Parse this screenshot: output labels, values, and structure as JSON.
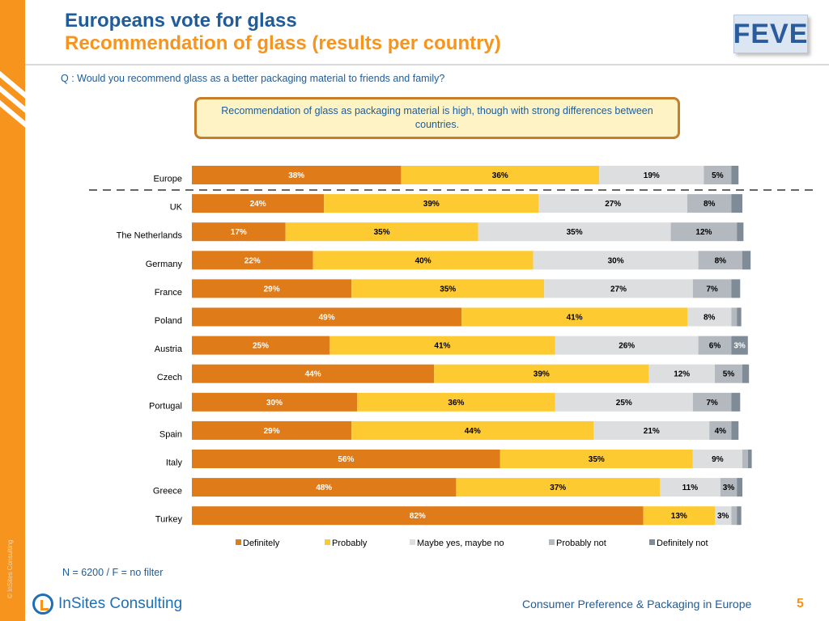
{
  "header": {
    "title": "Europeans vote for glass",
    "subtitle": "Recommendation of glass (results per country)",
    "logo_text": "FEVE"
  },
  "question": "Q : Would you recommend glass as a better packaging material to friends and family?",
  "callout": "Recommendation of glass as packaging material is high, though with strong differences between countries.",
  "note": "N = 6200 / F = no filter",
  "footer": {
    "brand": "InSites Consulting",
    "text": "Consumer Preference & Packaging in Europe",
    "page": "5",
    "watermark": "© InSites Consulting"
  },
  "colors": {
    "accent": "#f7941d",
    "title_blue": "#1f5c99"
  },
  "chart_data": {
    "type": "bar",
    "orientation": "horizontal",
    "stacked": true,
    "categories": [
      "Europe",
      "UK",
      "The Netherlands",
      "Germany",
      "France",
      "Poland",
      "Austria",
      "Czech",
      "Portugal",
      "Spain",
      "Italy",
      "Greece",
      "Turkey"
    ],
    "series": [
      {
        "name": "Definitely",
        "color": "#e07b1a",
        "label_color": "#ffffff",
        "values": [
          38,
          24,
          17,
          22,
          29,
          49,
          25,
          44,
          30,
          29,
          56,
          48,
          82
        ],
        "labels": [
          "38%",
          "24%",
          "17%",
          "22%",
          "29%",
          "49%",
          "25%",
          "44%",
          "30%",
          "29%",
          "56%",
          "48%",
          "82%"
        ]
      },
      {
        "name": "Probably",
        "color": "#fdca32",
        "label_color": "#000000",
        "values": [
          36,
          39,
          35,
          40,
          35,
          41,
          41,
          39,
          36,
          44,
          35,
          37,
          13
        ],
        "labels": [
          "36%",
          "39%",
          "35%",
          "40%",
          "35%",
          "41%",
          "41%",
          "39%",
          "36%",
          "44%",
          "35%",
          "37%",
          "13%"
        ]
      },
      {
        "name": "Maybe yes, maybe no",
        "color": "#dcdee0",
        "label_color": "#000000",
        "values": [
          19,
          27,
          35,
          30,
          27,
          8,
          26,
          12,
          25,
          21,
          9,
          11,
          3
        ],
        "labels": [
          "19%",
          "27%",
          "35%",
          "30%",
          "27%",
          "8%",
          "26%",
          "12%",
          "25%",
          "21%",
          "9%",
          "11%",
          "3%"
        ]
      },
      {
        "name": "Probably not",
        "color": "#b3b9bf",
        "label_color": "#000000",
        "values": [
          5,
          8,
          12,
          8,
          7,
          1,
          6,
          5,
          7,
          4,
          1,
          3,
          1
        ],
        "labels": [
          "5%",
          "8%",
          "12%",
          "8%",
          "7%",
          "",
          "6%",
          "5%",
          "7%",
          "4%",
          "",
          "3%",
          ""
        ]
      },
      {
        "name": "Definitely not",
        "color": "#7f8b96",
        "label_color": "#ffffff",
        "values": [
          1.3,
          2,
          1.2,
          1.5,
          1.6,
          0.8,
          3,
          1.2,
          1.6,
          1.3,
          0.7,
          1,
          0.8
        ],
        "labels": [
          "",
          "",
          "",
          "",
          "",
          "",
          "3%",
          "",
          "",
          "",
          "",
          "",
          ""
        ]
      }
    ],
    "legend_position": "bottom",
    "separator_after": "Europe",
    "grid": false
  }
}
